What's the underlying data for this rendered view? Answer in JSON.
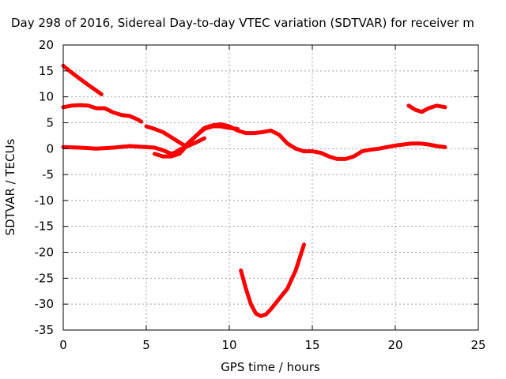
{
  "chart_data": {
    "type": "scatter",
    "title": "Day 298 of 2016, Sidereal Day-to-day VTEC variation (SDTVAR) for receiver m",
    "xlabel": "GPS time / hours",
    "ylabel": "SDTVAR / TECUs",
    "xlim": [
      0,
      25
    ],
    "ylim": [
      -35,
      20
    ],
    "xticks": [
      "0",
      "5",
      "10",
      "15",
      "20",
      "25"
    ],
    "yticks": [
      "20",
      "15",
      "10",
      "5",
      "0",
      "-5",
      "-10",
      "-15",
      "-20",
      "-25",
      "-30",
      "-35"
    ],
    "grid": true,
    "legend": "none",
    "color": "#ff0000",
    "series": [
      {
        "x": [
          0,
          0.5,
          1.0,
          1.5,
          2.0,
          2.3
        ],
        "y": [
          16,
          14.7,
          13.5,
          12.3,
          11.2,
          10.5
        ]
      },
      {
        "x": [
          0,
          0.5,
          1.0,
          1.5,
          2.0,
          2.5,
          3.0,
          3.5,
          4.0,
          4.5,
          4.7
        ],
        "y": [
          8.0,
          8.3,
          8.4,
          8.3,
          7.8,
          7.8,
          7.0,
          6.5,
          6.3,
          5.6,
          5.2
        ]
      },
      {
        "x": [
          0,
          1,
          2,
          3,
          4,
          5,
          5.5,
          6.0,
          6.5,
          7.0,
          7.5,
          8.0,
          8.5,
          9.0,
          9.5,
          10.0,
          10.5,
          11.0,
          11.5,
          12.0,
          12.5,
          13.0,
          13.5,
          14.0,
          14.5,
          15.0,
          15.5,
          16.0,
          16.5,
          17.0,
          17.5,
          18.0,
          18.5,
          19.0,
          19.5,
          20.0,
          20.5,
          21.0,
          21.5,
          22.0,
          22.5,
          23.0
        ],
        "y": [
          0.3,
          0.2,
          0.0,
          0.2,
          0.5,
          0.3,
          0.2,
          -0.3,
          -1.0,
          -0.5,
          1.0,
          2.5,
          4.0,
          4.5,
          4.7,
          4.3,
          3.5,
          3.0,
          3.0,
          3.2,
          3.5,
          2.7,
          1.0,
          0.0,
          -0.5,
          -0.5,
          -0.8,
          -1.5,
          -2.0,
          -2.0,
          -1.5,
          -0.5,
          -0.2,
          0.0,
          0.3,
          0.6,
          0.8,
          1.0,
          1.0,
          0.8,
          0.5,
          0.3
        ]
      },
      {
        "x": [
          5.0,
          5.5,
          6.0,
          6.5,
          7.0,
          7.3
        ],
        "y": [
          4.3,
          3.8,
          3.2,
          2.2,
          1.2,
          0.6
        ]
      },
      {
        "x": [
          5.5,
          6.0,
          6.5,
          7.0,
          7.5,
          8.0,
          8.5,
          9.0,
          9.5,
          10.0,
          10.5
        ],
        "y": [
          -1.0,
          -1.5,
          -1.5,
          -1.0,
          0.8,
          2.5,
          3.8,
          4.3,
          4.3,
          4.0,
          3.8
        ]
      },
      {
        "x": [
          6.5,
          7.0,
          7.5,
          8.0,
          8.5
        ],
        "y": [
          -1.2,
          -0.2,
          0.5,
          1.2,
          2.0
        ]
      },
      {
        "x": [
          10.7,
          11.0,
          11.3,
          11.6,
          11.9,
          12.2,
          12.5,
          13.0,
          13.5,
          14.0,
          14.5
        ],
        "y": [
          -23.5,
          -27.0,
          -30.0,
          -31.8,
          -32.3,
          -32.0,
          -31.0,
          -29.0,
          -27.0,
          -23.5,
          -18.5
        ]
      },
      {
        "x": [
          20.8,
          21.2,
          21.6,
          22.0,
          22.5,
          23.0
        ],
        "y": [
          8.3,
          7.5,
          7.1,
          7.8,
          8.3,
          8.0
        ]
      }
    ]
  }
}
